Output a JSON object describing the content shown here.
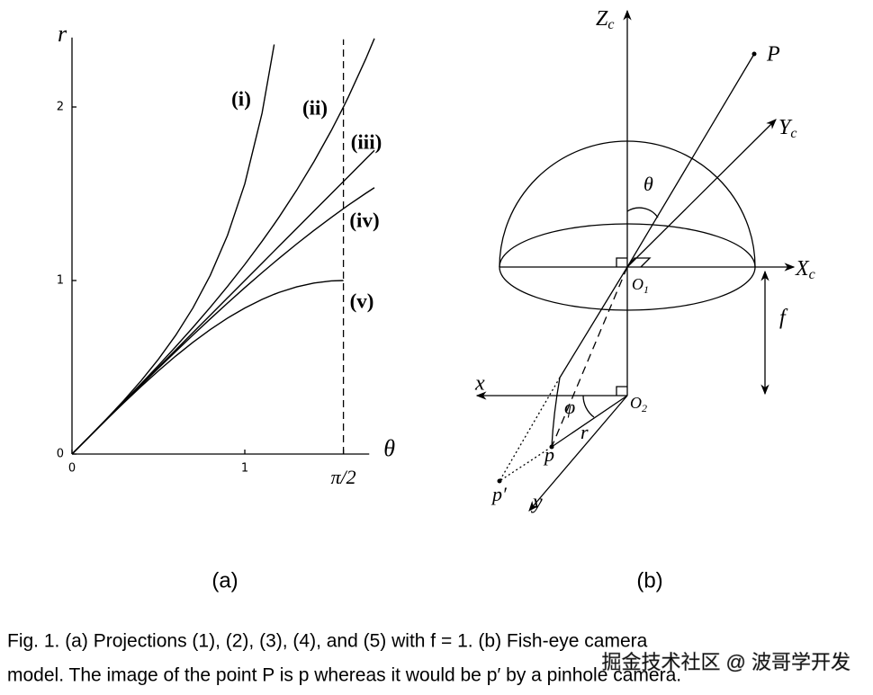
{
  "chart_data": {
    "type": "line",
    "x_label": "θ",
    "y_label": "r",
    "x": [
      0,
      0.1,
      0.2,
      0.3,
      0.4,
      0.5,
      0.6,
      0.7,
      0.8,
      0.9,
      1.0,
      1.1,
      1.17,
      1.2,
      1.3,
      1.4,
      1.5,
      1.5708,
      1.6,
      1.7,
      1.75
    ],
    "series": [
      {
        "name": "(i)",
        "color": "#000000",
        "values": [
          0,
          0.1003,
          0.2027,
          0.3093,
          0.4228,
          0.5463,
          0.6841,
          0.8423,
          1.0296,
          1.2602,
          1.5574,
          1.9648,
          2.36,
          null,
          null,
          null,
          null,
          null,
          null,
          null,
          null
        ]
      },
      {
        "name": "(ii)",
        "color": "#000000",
        "values": [
          0,
          0.1001,
          0.2007,
          0.3023,
          0.4054,
          0.5107,
          0.6187,
          0.73,
          0.8456,
          0.9661,
          1.0926,
          1.2262,
          1.3247,
          1.3683,
          1.5204,
          1.6846,
          1.8632,
          2.0,
          2.0593,
          2.2767,
          2.3948
        ]
      },
      {
        "name": "(iii)",
        "color": "#000000",
        "values": [
          0,
          0.1,
          0.2,
          0.3,
          0.4,
          0.5,
          0.6,
          0.7,
          0.8,
          0.9,
          1.0,
          1.1,
          1.17,
          1.2,
          1.3,
          1.4,
          1.5,
          1.5708,
          1.6,
          1.7,
          1.75
        ]
      },
      {
        "name": "(iv)",
        "color": "#000000",
        "values": [
          0,
          0.1,
          0.1997,
          0.2989,
          0.3973,
          0.4948,
          0.591,
          0.6858,
          0.7788,
          0.8699,
          0.9589,
          1.0454,
          1.1044,
          1.1293,
          1.2104,
          1.2884,
          1.3633,
          1.4142,
          1.4347,
          1.5026,
          1.5351
        ]
      },
      {
        "name": "(v)",
        "color": "#000000",
        "values": [
          0,
          0.0998,
          0.1987,
          0.2955,
          0.3894,
          0.4794,
          0.5646,
          0.6442,
          0.7174,
          0.7833,
          0.8415,
          0.8912,
          0.9208,
          0.932,
          0.9636,
          0.9854,
          0.9975,
          1.0,
          null,
          null,
          null
        ]
      }
    ],
    "xlim": [
      0,
      1.72
    ],
    "ylim": [
      0,
      2.4
    ],
    "xticks": [
      0,
      1,
      {
        "value": 1.5708,
        "label": "π/2"
      }
    ],
    "yticks": [
      0,
      1,
      2
    ],
    "panel_label": "(a)"
  },
  "diagram": {
    "panel_label": "(b)",
    "labels": {
      "zc": {
        "main": "Z",
        "sub": "c"
      },
      "yc": {
        "main": "Y",
        "sub": "c"
      },
      "xc": {
        "main": "X",
        "sub": "c"
      },
      "P": "P",
      "theta": "θ",
      "o1": {
        "main": "O",
        "sub": "1"
      },
      "o2": {
        "main": "O",
        "sub": "2"
      },
      "f": "f",
      "x": "x",
      "y": "y",
      "phi": "φ",
      "p": "p",
      "r": "r",
      "pp": "p′"
    }
  },
  "caption": [
    "Fig. 1. (a) Projections (1), (2), (3), (4), and (5) with f = 1. (b) Fish-eye camera",
    "model. The image of the point P is p whereas it would be p′ by a pinhole camera."
  ],
  "watermark": "掘金技术社区 @ 波哥学开发"
}
